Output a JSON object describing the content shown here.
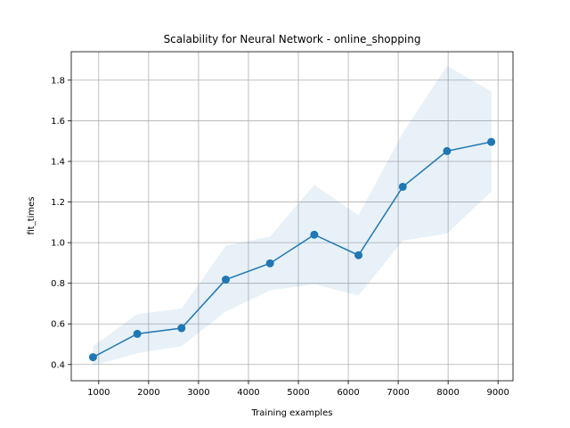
{
  "chart_data": {
    "type": "line",
    "title": "Scalability for Neural Network - online_shopping",
    "xlabel": "Training examples",
    "ylabel": "fit_times",
    "xlim": [
      450,
      9300
    ],
    "ylim": [
      0.32,
      1.94
    ],
    "xticks": [
      1000,
      2000,
      3000,
      4000,
      5000,
      6000,
      7000,
      8000,
      9000
    ],
    "yticks": [
      0.4,
      0.6,
      0.8,
      1.0,
      1.2,
      1.4,
      1.6,
      1.8
    ],
    "xtick_labels": [
      "1000",
      "2000",
      "3000",
      "4000",
      "5000",
      "6000",
      "7000",
      "8000",
      "9000"
    ],
    "ytick_labels": [
      "0.4",
      "0.6",
      "0.8",
      "1.0",
      "1.2",
      "1.4",
      "1.6",
      "1.8"
    ],
    "grid": true,
    "x": [
      886,
      1773,
      2659,
      3546,
      4432,
      5319,
      6205,
      7092,
      7978,
      8865
    ],
    "series": [
      {
        "values": [
          0.436,
          0.551,
          0.579,
          0.818,
          0.898,
          1.039,
          0.938,
          1.275,
          1.451,
          1.496
        ],
        "lower": [
          0.395,
          0.455,
          0.49,
          0.66,
          0.765,
          0.795,
          0.74,
          1.01,
          1.045,
          1.25
        ],
        "upper": [
          0.49,
          0.648,
          0.675,
          0.985,
          1.03,
          1.285,
          1.135,
          1.54,
          1.87,
          1.745
        ],
        "color": "#1f77b4",
        "band_color": "#1f77b4"
      }
    ]
  }
}
